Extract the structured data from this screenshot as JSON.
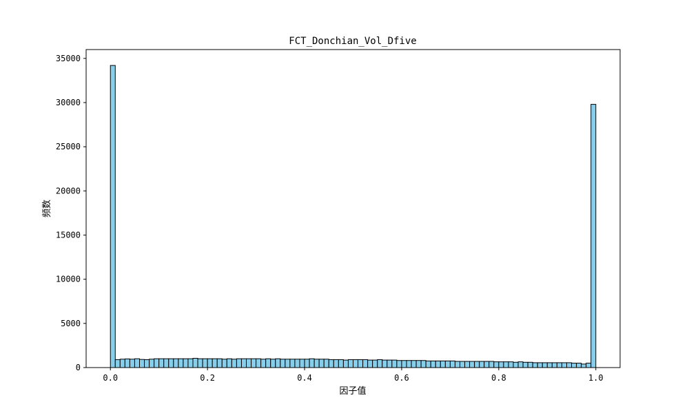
{
  "chart_data": {
    "type": "bar",
    "title": "FCT_Donchian_Vol_Dfive",
    "xlabel": "因子值",
    "ylabel": "频数",
    "xlim": [
      -0.05,
      1.05
    ],
    "ylim": [
      0,
      36000
    ],
    "xticks": [
      0.0,
      0.2,
      0.4,
      0.6,
      0.8,
      1.0
    ],
    "xtick_labels": [
      "0.0",
      "0.2",
      "0.4",
      "0.6",
      "0.8",
      "1.0"
    ],
    "yticks": [
      0,
      5000,
      10000,
      15000,
      20000,
      25000,
      30000,
      35000
    ],
    "ytick_labels": [
      "0",
      "5000",
      "10000",
      "15000",
      "20000",
      "25000",
      "30000",
      "35000"
    ],
    "bin_start": 0.0,
    "bin_width": 0.01,
    "values": [
      34200,
      900,
      950,
      980,
      950,
      1000,
      920,
      900,
      950,
      1000,
      1000,
      1000,
      1000,
      1000,
      1000,
      1000,
      1000,
      1050,
      1000,
      1000,
      1000,
      1000,
      1000,
      950,
      1000,
      950,
      1000,
      1000,
      1000,
      1000,
      1000,
      950,
      1000,
      950,
      1000,
      950,
      950,
      950,
      950,
      950,
      950,
      1000,
      950,
      950,
      950,
      900,
      900,
      900,
      850,
      900,
      900,
      900,
      900,
      850,
      850,
      900,
      850,
      850,
      850,
      800,
      800,
      800,
      800,
      800,
      800,
      750,
      750,
      750,
      750,
      750,
      750,
      700,
      700,
      700,
      700,
      700,
      700,
      700,
      700,
      650,
      650,
      650,
      650,
      600,
      650,
      600,
      600,
      550,
      550,
      550,
      550,
      550,
      550,
      550,
      550,
      500,
      500,
      400,
      500,
      29800
    ],
    "bar_color": "#87ceeb",
    "edge_color": "#000000",
    "grid": false
  }
}
